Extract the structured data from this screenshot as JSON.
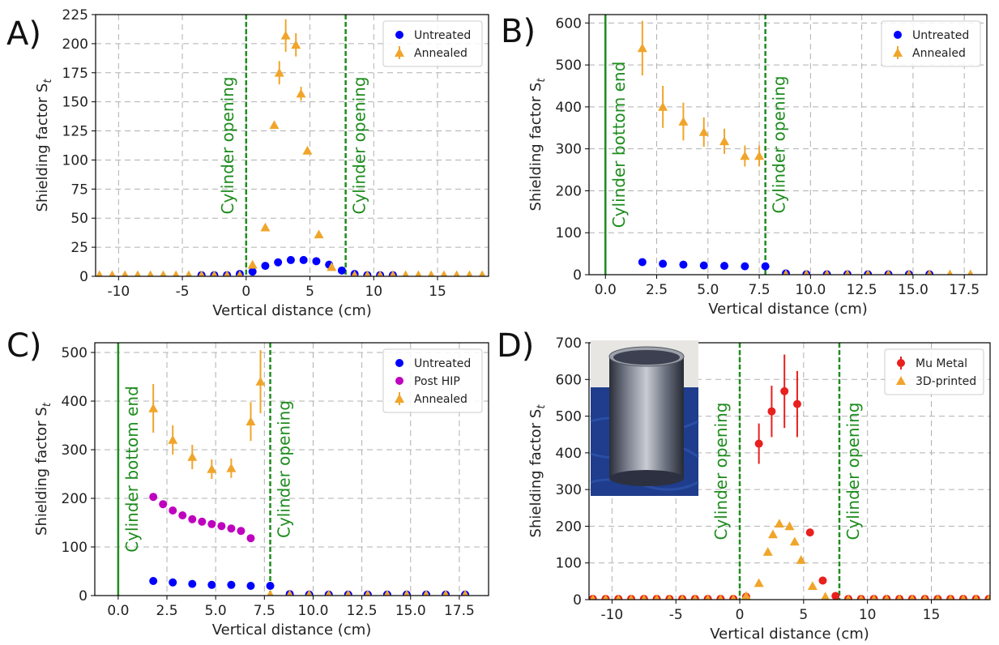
{
  "chart_data": [
    {
      "type": "scatter",
      "panel_label": "A)",
      "x_label": "Vertical distance (cm)",
      "y_label": "Shielding factor S",
      "y_label_subscript": "t",
      "xlim": [
        -11.8,
        19
      ],
      "xticks": [
        -10,
        -5,
        0,
        5,
        10,
        15
      ],
      "ylim": [
        0,
        225
      ],
      "yticks": [
        0,
        25,
        50,
        75,
        100,
        125,
        150,
        175,
        200,
        225
      ],
      "grid": true,
      "legend": "upper right",
      "vlines": [
        {
          "x": 0,
          "label": "Cylinder opening",
          "style": "dashed",
          "color": "#1e8c1e",
          "side": "left"
        },
        {
          "x": 7.8,
          "label": "Cylinder opening",
          "style": "dashed",
          "color": "#1e8c1e",
          "side": "right"
        }
      ],
      "series": [
        {
          "name": "Untreated",
          "color": "#0000ff",
          "marker": "circle",
          "x": [
            -3.5,
            -2.5,
            -1.5,
            -0.5,
            0.5,
            1.5,
            2.5,
            3.5,
            4.5,
            5.5,
            6.5,
            7.5,
            8.5,
            9.5,
            10.5,
            11.5
          ],
          "values": [
            1,
            1,
            1,
            2,
            4,
            9,
            12,
            14,
            14,
            13,
            10,
            5,
            2,
            1,
            1,
            1
          ]
        },
        {
          "name": "Annealed",
          "color": "#f0a52a",
          "marker": "triangle",
          "x": [
            -11.5,
            -10.5,
            -9.5,
            -8.5,
            -7.5,
            -6.5,
            -5.5,
            -4.5,
            -3.5,
            -2.5,
            -1.5,
            -0.5,
            0.5,
            1.5,
            2.2,
            2.6,
            3.1,
            3.9,
            4.3,
            4.8,
            5.7,
            6.7,
            8.5,
            9.5,
            10.5,
            11.5,
            12.5,
            13.5,
            14.5,
            15.5,
            16.5,
            17.5,
            18.5
          ],
          "values": [
            1,
            1,
            1,
            1,
            1,
            1,
            1,
            1,
            1,
            1,
            1,
            1,
            10,
            42,
            130,
            175,
            207,
            199,
            157,
            108,
            36,
            8,
            1,
            1,
            1,
            1,
            1,
            1,
            1,
            1,
            1,
            1,
            1
          ],
          "errors": [
            null,
            null,
            null,
            null,
            null,
            null,
            null,
            null,
            null,
            null,
            null,
            null,
            null,
            null,
            3,
            10,
            14,
            10,
            6,
            3,
            2,
            null,
            null,
            null,
            null,
            null,
            null,
            null,
            null,
            null,
            null,
            null,
            null
          ]
        }
      ]
    },
    {
      "type": "scatter",
      "panel_label": "B)",
      "x_label": "Vertical distance (cm)",
      "y_label": "Shielding factor S",
      "y_label_subscript": "t",
      "xlim": [
        -0.8,
        18.6
      ],
      "xticks": [
        {
          "value": 0,
          "label": "0.0"
        },
        2.5,
        {
          "value": 5,
          "label": "5.0"
        },
        7.5,
        {
          "value": 10,
          "label": "10.0"
        },
        12.5,
        {
          "value": 15,
          "label": "15.0"
        },
        17.5
      ],
      "ylim": [
        0,
        620
      ],
      "yticks": [
        0,
        100,
        200,
        300,
        400,
        500,
        600
      ],
      "grid": true,
      "legend": "upper right",
      "vlines": [
        {
          "x": 0,
          "label": "Cylinder bottom end",
          "style": "solid",
          "color": "#1e8c1e",
          "side": "right"
        },
        {
          "x": 7.8,
          "label": "Cylinder opening",
          "style": "dashed",
          "color": "#1e8c1e",
          "side": "right"
        }
      ],
      "series": [
        {
          "name": "Untreated",
          "color": "#0000ff",
          "marker": "circle",
          "x": [
            1.8,
            2.8,
            3.8,
            4.8,
            5.8,
            6.8,
            7.8,
            8.8,
            9.8,
            10.8,
            11.8,
            12.8,
            13.8,
            14.8,
            15.8
          ],
          "values": [
            30,
            26,
            24,
            22,
            21,
            20,
            20,
            3,
            1,
            1,
            1,
            1,
            1,
            1,
            1
          ]
        },
        {
          "name": "Annealed",
          "color": "#f0a52a",
          "marker": "triangle",
          "x": [
            1.8,
            2.8,
            3.8,
            4.8,
            5.8,
            6.8,
            7.5,
            8.8,
            9.8,
            10.8,
            11.8,
            12.8,
            13.8,
            14.8,
            15.8,
            16.8,
            17.8
          ],
          "values": [
            540,
            400,
            365,
            340,
            318,
            283,
            283,
            1,
            1,
            1,
            1,
            1,
            1,
            1,
            1,
            1,
            1
          ],
          "errors": [
            65,
            50,
            45,
            35,
            30,
            25,
            25,
            null,
            null,
            null,
            null,
            null,
            null,
            null,
            null,
            null,
            null
          ]
        }
      ]
    },
    {
      "type": "scatter",
      "panel_label": "C)",
      "x_label": "Vertical distance (cm)",
      "y_label": "Shielding factor S",
      "y_label_subscript": "t",
      "xlim": [
        -1.2,
        19
      ],
      "xticks": [
        {
          "value": 0,
          "label": "0.0"
        },
        2.5,
        {
          "value": 5,
          "label": "5.0"
        },
        7.5,
        {
          "value": 10,
          "label": "10.0"
        },
        12.5,
        {
          "value": 15,
          "label": "15.0"
        },
        17.5
      ],
      "ylim": [
        0,
        520
      ],
      "yticks": [
        0,
        100,
        200,
        300,
        400,
        500
      ],
      "grid": true,
      "legend": "upper right",
      "vlines": [
        {
          "x": 0,
          "label": "Cylinder bottom end",
          "style": "solid",
          "color": "#1e8c1e",
          "side": "right"
        },
        {
          "x": 7.8,
          "label": "Cylinder opening",
          "style": "dashed",
          "color": "#1e8c1e",
          "side": "right"
        }
      ],
      "series": [
        {
          "name": "Untreated",
          "color": "#0000ff",
          "marker": "circle",
          "x": [
            1.8,
            2.8,
            3.8,
            4.8,
            5.8,
            6.8,
            7.8,
            8.8,
            9.8,
            10.8,
            11.8,
            12.8,
            13.8,
            14.8,
            15.8,
            16.8,
            17.8
          ],
          "values": [
            30,
            27,
            24,
            22,
            22,
            20,
            20,
            3,
            2,
            2,
            2,
            2,
            2,
            2,
            2,
            2,
            2
          ]
        },
        {
          "name": "Post HIP",
          "color": "#bf00bf",
          "marker": "circle",
          "x": [
            1.8,
            2.3,
            2.8,
            3.3,
            3.8,
            4.3,
            4.8,
            5.3,
            5.8,
            6.3,
            6.8
          ],
          "values": [
            203,
            188,
            175,
            165,
            157,
            152,
            147,
            143,
            138,
            133,
            118
          ]
        },
        {
          "name": "Annealed",
          "color": "#f0a52a",
          "marker": "triangle",
          "x": [
            1.8,
            2.8,
            3.8,
            4.8,
            5.8,
            6.8,
            7.3,
            7.8,
            8.8,
            9.8,
            10.8,
            11.8,
            12.8,
            13.8,
            14.8,
            15.8,
            16.8,
            17.8
          ],
          "values": [
            385,
            320,
            285,
            260,
            262,
            358,
            440,
            2,
            2,
            2,
            2,
            2,
            2,
            2,
            2,
            2,
            2,
            2
          ],
          "errors": [
            50,
            30,
            25,
            20,
            20,
            40,
            65,
            null,
            null,
            null,
            null,
            null,
            null,
            null,
            null,
            null,
            null,
            null
          ]
        }
      ]
    },
    {
      "type": "scatter",
      "panel_label": "D)",
      "x_label": "Vertical distance (cm)",
      "y_label": "Shielding factor S",
      "y_label_subscript": "t",
      "xlim": [
        -11.8,
        19.6
      ],
      "xticks": [
        -10,
        -5,
        0,
        5,
        10,
        15
      ],
      "ylim": [
        0,
        700
      ],
      "yticks": [
        0,
        100,
        200,
        300,
        400,
        500,
        600,
        700
      ],
      "grid": true,
      "legend": "upper right",
      "vlines": [
        {
          "x": 0,
          "label": "Cylinder opening",
          "style": "dashed",
          "color": "#1e8c1e",
          "side": "left"
        },
        {
          "x": 7.8,
          "label": "Cylinder opening",
          "style": "dashed",
          "color": "#1e8c1e",
          "side": "right"
        }
      ],
      "series": [
        {
          "name": "Mu Metal",
          "color": "#e8201e",
          "marker": "circle",
          "x": [
            -11.5,
            -10.5,
            -9.5,
            -8.5,
            -7.5,
            -6.5,
            -5.5,
            -4.5,
            -3.5,
            -2.5,
            -1.5,
            -0.5,
            0.5,
            1.5,
            2.5,
            3.5,
            4.5,
            5.5,
            6.5,
            7.5,
            8.5,
            9.5,
            10.5,
            11.5,
            12.5,
            13.5,
            14.5,
            15.5,
            16.5,
            17.5,
            18.5,
            19.5
          ],
          "values": [
            2,
            2,
            2,
            2,
            2,
            2,
            2,
            2,
            2,
            2,
            2,
            2,
            8,
            425,
            513,
            568,
            533,
            183,
            52,
            10,
            2,
            2,
            2,
            2,
            2,
            2,
            2,
            2,
            2,
            2,
            2,
            2
          ],
          "errors": [
            null,
            null,
            null,
            null,
            null,
            null,
            null,
            null,
            null,
            null,
            null,
            null,
            null,
            55,
            70,
            100,
            90,
            10,
            10,
            null,
            null,
            null,
            null,
            null,
            null,
            null,
            null,
            null,
            null,
            null,
            null,
            null
          ]
        },
        {
          "name": "3D-printed",
          "color": "#f0a52a",
          "marker": "triangle",
          "x": [
            -11.5,
            -10.5,
            -9.5,
            -8.5,
            -7.5,
            -6.5,
            -5.5,
            -4.5,
            -3.5,
            -2.5,
            -1.5,
            -0.5,
            0.5,
            1.5,
            2.2,
            2.6,
            3.1,
            3.9,
            4.3,
            4.8,
            5.7,
            6.7,
            8.5,
            9.5,
            10.5,
            11.5,
            12.5,
            13.5,
            14.5,
            15.5,
            16.5,
            17.5,
            18.5,
            19.5
          ],
          "values": [
            1,
            1,
            1,
            1,
            1,
            1,
            1,
            1,
            1,
            1,
            1,
            1,
            10,
            45,
            130,
            178,
            207,
            200,
            158,
            108,
            37,
            8,
            1,
            1,
            1,
            1,
            1,
            1,
            1,
            1,
            1,
            1,
            1,
            1
          ]
        }
      ]
    }
  ]
}
